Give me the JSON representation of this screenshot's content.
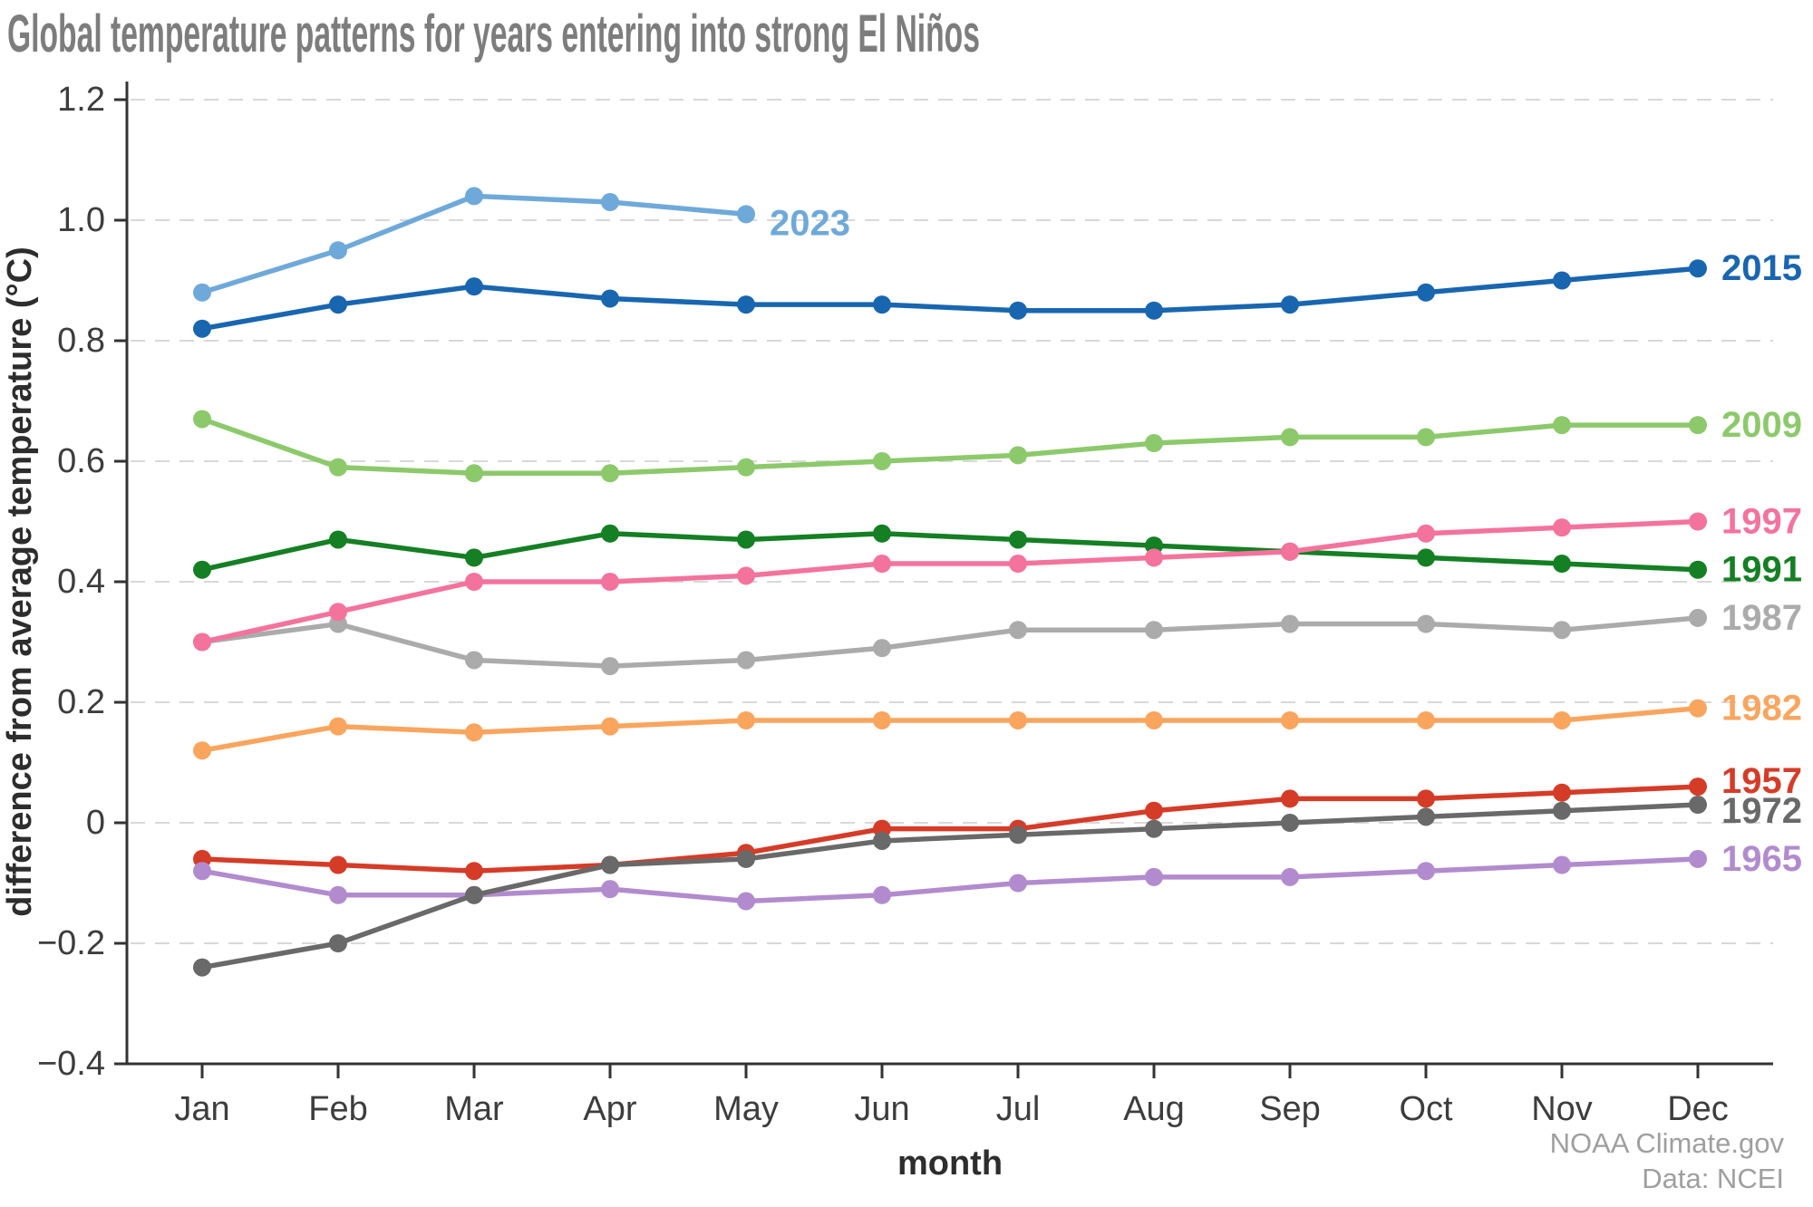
{
  "chart_data": {
    "type": "line",
    "title": "Global temperature patterns for years entering into strong El Niños",
    "xlabel": "month",
    "ylabel": "difference from average temperature (°C)",
    "categories": [
      "Jan",
      "Feb",
      "Mar",
      "Apr",
      "May",
      "Jun",
      "Jul",
      "Aug",
      "Sep",
      "Oct",
      "Nov",
      "Dec"
    ],
    "ylim": [
      -0.4,
      1.2
    ],
    "yticks": [
      -0.4,
      -0.2,
      0,
      0.2,
      0.4,
      0.6,
      0.8,
      1.0,
      1.2
    ],
    "ytick_labels": [
      "−0.4",
      "−0.2",
      "0",
      "0.2",
      "0.4",
      "0.6",
      "0.8",
      "1.0",
      "1.2"
    ],
    "grid": "horizontal dashed gridlines",
    "legend_position": "labels at line ends, right side",
    "series": [
      {
        "name": "2023",
        "color": "#6fa9da",
        "values": [
          0.88,
          0.95,
          1.04,
          1.03,
          1.01
        ]
      },
      {
        "name": "2015",
        "color": "#1966b0",
        "values": [
          0.82,
          0.86,
          0.89,
          0.87,
          0.86,
          0.86,
          0.85,
          0.85,
          0.86,
          0.88,
          0.9,
          0.92
        ]
      },
      {
        "name": "2009",
        "color": "#8cc96b",
        "values": [
          0.67,
          0.59,
          0.58,
          0.58,
          0.59,
          0.6,
          0.61,
          0.63,
          0.64,
          0.64,
          0.66,
          0.66
        ]
      },
      {
        "name": "1997",
        "color": "#f3739d",
        "values": [
          0.3,
          0.35,
          0.4,
          0.4,
          0.41,
          0.43,
          0.43,
          0.44,
          0.45,
          0.48,
          0.49,
          0.5
        ]
      },
      {
        "name": "1991",
        "color": "#157f24",
        "values": [
          0.42,
          0.47,
          0.44,
          0.48,
          0.47,
          0.48,
          0.47,
          0.46,
          0.45,
          0.44,
          0.43,
          0.42
        ]
      },
      {
        "name": "1987",
        "color": "#ababab",
        "values": [
          0.3,
          0.33,
          0.27,
          0.26,
          0.27,
          0.29,
          0.32,
          0.32,
          0.33,
          0.33,
          0.32,
          0.34
        ]
      },
      {
        "name": "1982",
        "color": "#f9a55e",
        "values": [
          0.12,
          0.16,
          0.15,
          0.16,
          0.17,
          0.17,
          0.17,
          0.17,
          0.17,
          0.17,
          0.17,
          0.19
        ]
      },
      {
        "name": "1957",
        "color": "#d53c28",
        "values": [
          -0.06,
          -0.07,
          -0.08,
          -0.07,
          -0.05,
          -0.01,
          -0.01,
          0.02,
          0.04,
          0.04,
          0.05,
          0.06
        ]
      },
      {
        "name": "1972",
        "color": "#696969",
        "values": [
          -0.24,
          -0.2,
          -0.12,
          -0.07,
          -0.06,
          -0.03,
          -0.02,
          -0.01,
          0.0,
          0.01,
          0.02,
          0.03
        ]
      },
      {
        "name": "1965",
        "color": "#b28bce",
        "values": [
          -0.08,
          -0.12,
          -0.12,
          -0.11,
          -0.13,
          -0.12,
          -0.1,
          -0.09,
          -0.09,
          -0.08,
          -0.07,
          -0.06
        ]
      }
    ]
  },
  "attribution": {
    "line1": "NOAA Climate.gov",
    "line2": "Data: NCEI"
  }
}
